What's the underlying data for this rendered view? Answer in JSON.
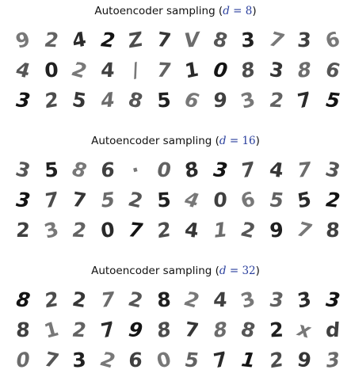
{
  "panels": [
    {
      "title_prefix": "Autoencoder sampling (",
      "title_var": "d",
      "title_eq": " = 8",
      "title_suffix": ")",
      "samples": [
        [
          "9",
          "2",
          "4",
          "2",
          "Z",
          "7",
          "V",
          "8",
          "3",
          "7",
          "3",
          "6"
        ],
        [
          "4",
          "0",
          "2",
          "4",
          "/",
          "7",
          "1",
          "0",
          "8",
          "3",
          "8",
          "6"
        ],
        [
          "3",
          "2",
          "5",
          "4",
          "8",
          "5",
          "6",
          "9",
          "3",
          "2",
          "7",
          "5"
        ]
      ]
    },
    {
      "title_prefix": "Autoencoder sampling (",
      "title_var": "d",
      "title_eq": " = 16",
      "title_suffix": ")",
      "samples": [
        [
          "3",
          "5",
          "8",
          "6",
          "·",
          "0",
          "8",
          "3",
          "7",
          "4",
          "7",
          "3"
        ],
        [
          "3",
          "7",
          "7",
          "5",
          "2",
          "5",
          "4",
          "0",
          "6",
          "5",
          "5",
          "2"
        ],
        [
          "2",
          "3",
          "2",
          "0",
          "7",
          "2",
          "4",
          "1",
          "2",
          "9",
          "7",
          "8"
        ]
      ]
    },
    {
      "title_prefix": "Autoencoder sampling (",
      "title_var": "d",
      "title_eq": " = 32",
      "title_suffix": ")",
      "samples": [
        [
          "8",
          "2",
          "2",
          "7",
          "2",
          "8",
          "2",
          "4",
          "3",
          "3",
          "3",
          "3"
        ],
        [
          "8",
          "1",
          "2",
          "7",
          "9",
          "8",
          "7",
          "8",
          "8",
          "2",
          "x",
          "d"
        ],
        [
          "0",
          "7",
          "3",
          "2",
          "6",
          "0",
          "5",
          "7",
          "1",
          "2",
          "9",
          "3"
        ]
      ]
    }
  ]
}
